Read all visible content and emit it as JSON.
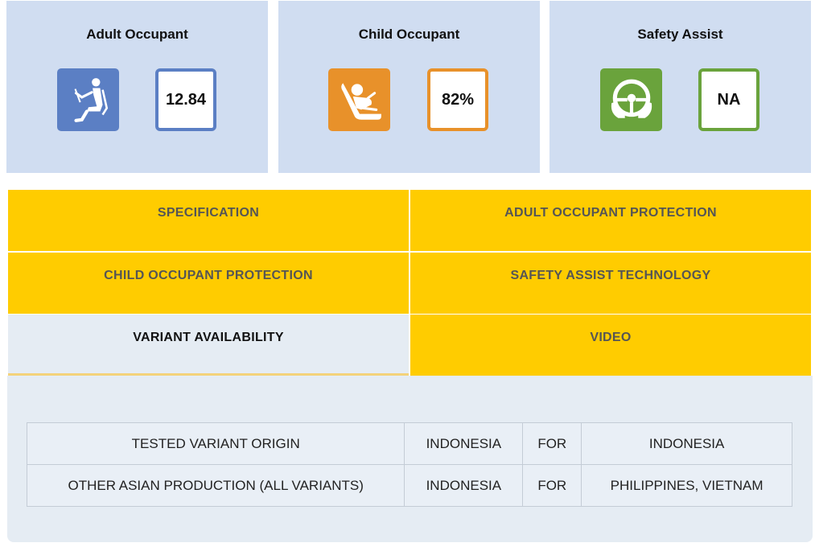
{
  "ratings": [
    {
      "title": "Adult Occupant",
      "icon": "adult-seat-icon",
      "icon_color": "#5b7fc4",
      "score": "12.84"
    },
    {
      "title": "Child Occupant",
      "icon": "child-seat-icon",
      "icon_color": "#e8912a",
      "score": "82%"
    },
    {
      "title": "Safety Assist",
      "icon": "steering-wheel-icon",
      "icon_color": "#6aa33c",
      "score": "NA"
    }
  ],
  "tabs": {
    "specification": "SPECIFICATION",
    "adult_occupant_protection": "ADULT OCCUPANT PROTECTION",
    "child_occupant_protection": "CHILD OCCUPANT PROTECTION",
    "safety_assist_technology": "SAFETY ASSIST TECHNOLOGY",
    "variant_availability": "VARIANT AVAILABILITY",
    "video": "VIDEO",
    "active": "VARIANT AVAILABILITY"
  },
  "variant_table": {
    "rows": [
      [
        "TESTED VARIANT ORIGIN",
        "INDONESIA",
        "FOR",
        "INDONESIA"
      ],
      [
        "OTHER ASIAN PRODUCTION (ALL VARIANTS)",
        "INDONESIA",
        "FOR",
        "PHILIPPINES, VIETNAM"
      ]
    ]
  },
  "colors": {
    "card_bg": "#d0ddf1",
    "tab_bg": "#ffcc00",
    "active_tab_bg": "#e5ecf3",
    "adult": "#5b7fc4",
    "child": "#e8912a",
    "safety": "#6aa33c"
  }
}
